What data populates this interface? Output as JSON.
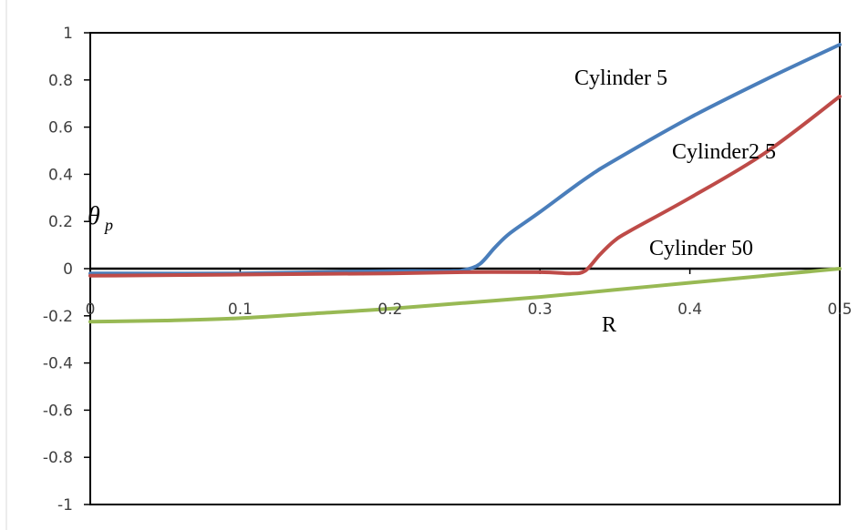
{
  "chart_data": {
    "type": "line",
    "xlabel": "R",
    "ylabel": "θ",
    "ylabel_subscript": "p",
    "xlim": [
      0,
      0.5
    ],
    "ylim": [
      -1,
      1
    ],
    "x_ticks": [
      {
        "value": 0,
        "label": "0"
      },
      {
        "value": 0.1,
        "label": "0.1"
      },
      {
        "value": 0.2,
        "label": "0.2"
      },
      {
        "value": 0.3,
        "label": "0.3"
      },
      {
        "value": 0.4,
        "label": "0.4"
      },
      {
        "value": 0.5,
        "label": "0.5"
      }
    ],
    "y_ticks": [
      {
        "value": 1,
        "label": "1"
      },
      {
        "value": 0.8,
        "label": "0.8"
      },
      {
        "value": 0.6,
        "label": "0.6"
      },
      {
        "value": 0.4,
        "label": "0.4"
      },
      {
        "value": 0.2,
        "label": "0.2"
      },
      {
        "value": 0,
        "label": "0"
      },
      {
        "value": -0.2,
        "label": "-0.2"
      },
      {
        "value": -0.4,
        "label": "-0.4"
      },
      {
        "value": -0.6,
        "label": "-0.6"
      },
      {
        "value": -0.8,
        "label": "-0.8"
      },
      {
        "value": -1,
        "label": "-1"
      }
    ],
    "grid": false,
    "series": [
      {
        "name": "Cylinder 5",
        "color": "#4a7ebb",
        "x": [
          0,
          0.1,
          0.2,
          0.24,
          0.25,
          0.26,
          0.27,
          0.28,
          0.3,
          0.33,
          0.35,
          0.4,
          0.45,
          0.5
        ],
        "y": [
          -0.02,
          -0.02,
          -0.01,
          -0.01,
          -0.005,
          0.02,
          0.09,
          0.15,
          0.24,
          0.38,
          0.46,
          0.64,
          0.8,
          0.95
        ]
      },
      {
        "name": "Cylinder2 5",
        "color": "#be4b48",
        "x": [
          0,
          0.1,
          0.2,
          0.25,
          0.3,
          0.32,
          0.33,
          0.34,
          0.35,
          0.36,
          0.4,
          0.45,
          0.5
        ],
        "y": [
          -0.03,
          -0.025,
          -0.02,
          -0.015,
          -0.015,
          -0.02,
          -0.01,
          0.06,
          0.12,
          0.16,
          0.3,
          0.49,
          0.73
        ]
      },
      {
        "name": "Cylinder 50",
        "color": "#98b954",
        "x": [
          0,
          0.05,
          0.1,
          0.15,
          0.2,
          0.25,
          0.3,
          0.35,
          0.4,
          0.45,
          0.5
        ],
        "y": [
          -0.225,
          -0.22,
          -0.21,
          -0.19,
          -0.17,
          -0.145,
          -0.12,
          -0.09,
          -0.06,
          -0.03,
          0
        ]
      }
    ]
  }
}
